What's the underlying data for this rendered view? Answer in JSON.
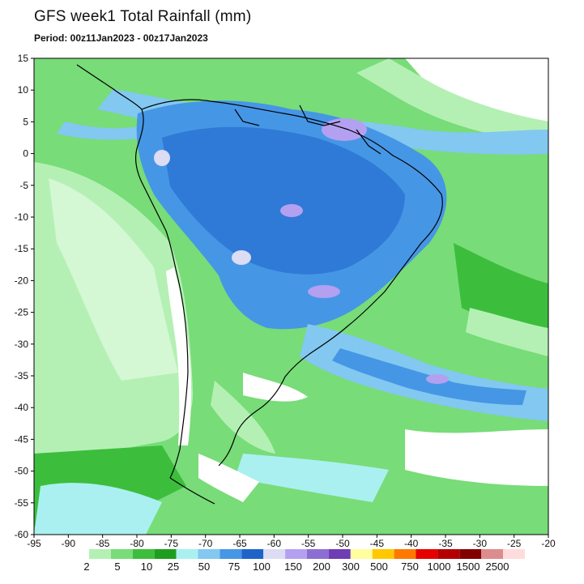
{
  "title": "GFS week1 Total Rainfall (mm)",
  "period": "Period: 00z11Jan2023 - 00z17Jan2023",
  "axes": {
    "lon_ticks": [
      "-95",
      "-90",
      "-85",
      "-80",
      "-75",
      "-70",
      "-65",
      "-60",
      "-55",
      "-50",
      "-45",
      "-40",
      "-35",
      "-30",
      "-25",
      "-20"
    ],
    "lat_ticks": [
      "15",
      "10",
      "5",
      "0",
      "-5",
      "-10",
      "-15",
      "-20",
      "-25",
      "-30",
      "-35",
      "-40",
      "-45",
      "-50",
      "-55",
      "-60"
    ]
  },
  "legend": {
    "labels": [
      "2",
      "5",
      "10",
      "25",
      "50",
      "75",
      "100",
      "150",
      "200",
      "300",
      "500",
      "750",
      "1000",
      "1500",
      "2500"
    ],
    "colors": [
      "#b4f0b4",
      "#78dc78",
      "#3cbe3c",
      "#1e9e1e",
      "#aaf0f0",
      "#82c8f0",
      "#4696e6",
      "#1e64c8",
      "#dcdcf5",
      "#b4a0f0",
      "#8c6ed2",
      "#6e3cb4",
      "#ffffa0",
      "#ffc800",
      "#ff7800",
      "#e60000",
      "#b40000",
      "#820000",
      "#dc8c8c",
      "#ffdcdc"
    ]
  }
}
